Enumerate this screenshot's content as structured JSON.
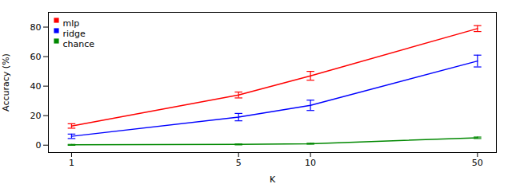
{
  "chart_data": {
    "type": "line",
    "xlabel": "K",
    "ylabel": "Accuracy (%)",
    "x": [
      1,
      5,
      10,
      50
    ],
    "series": [
      {
        "name": "mlp",
        "color": "#ff0000",
        "values": [
          13,
          34,
          47,
          79
        ],
        "yerr": [
          1.5,
          2.0,
          3.0,
          2.0
        ]
      },
      {
        "name": "ridge",
        "color": "#0000ff",
        "values": [
          6,
          19,
          27,
          57
        ],
        "yerr": [
          1.5,
          2.5,
          3.5,
          4.0
        ]
      },
      {
        "name": "chance",
        "color": "#008800",
        "values": [
          0.2,
          0.5,
          1.0,
          5.0
        ],
        "yerr": [
          0.3,
          0.3,
          0.3,
          0.5
        ]
      }
    ],
    "log": "x",
    "xlim": [
      0.8,
      60
    ],
    "xticks": [
      1,
      5,
      10,
      50
    ],
    "ylim": [
      -5,
      90
    ],
    "yticks": [
      0,
      20,
      40,
      60,
      80
    ],
    "legend": "upper left"
  }
}
